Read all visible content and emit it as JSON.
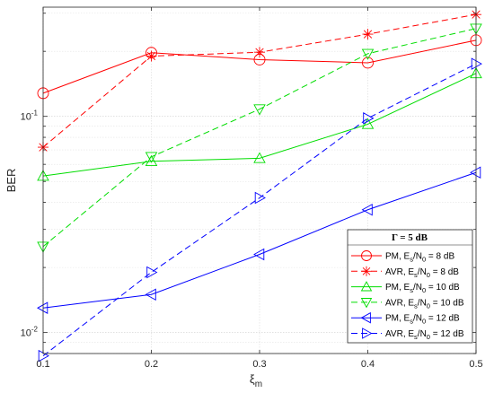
{
  "chart_data": {
    "type": "line",
    "title": "",
    "xlabel": "ξ",
    "xlabel_sub": "m",
    "ylabel": "BER",
    "xlim": [
      0.1,
      0.5
    ],
    "ylim": [
      0.008,
      0.32
    ],
    "yscale": "log",
    "grid": true,
    "x": [
      0.1,
      0.2,
      0.3,
      0.4,
      0.5
    ],
    "x_tick_labels": [
      "0.1",
      "0.2",
      "0.3",
      "0.4",
      "0.5"
    ],
    "y_tick_labels": [
      {
        "value": 0.01,
        "base": "10",
        "exp": "-2"
      },
      {
        "value": 0.1,
        "base": "10",
        "exp": "-1"
      }
    ],
    "legend": {
      "title": "Γ = 5 dB",
      "placement": "bottom-right"
    },
    "series": [
      {
        "label_pre": "PM, E",
        "label_sub": "s",
        "label_mid": "/N",
        "label_sub2": "0",
        "label_post": " = 8 dB",
        "color": "#ff0000",
        "dash": "solid",
        "marker": "circle",
        "values": [
          0.128,
          0.197,
          0.183,
          0.177,
          0.225
        ]
      },
      {
        "label_pre": "AVR, E",
        "label_sub": "s",
        "label_mid": "/N",
        "label_sub2": "0",
        "label_post": " = 8 dB",
        "color": "#ff0000",
        "dash": "dashed",
        "marker": "star",
        "values": [
          0.072,
          0.19,
          0.198,
          0.24,
          0.296
        ]
      },
      {
        "label_pre": "PM, E",
        "label_sub": "s",
        "label_mid": "/N",
        "label_sub2": "0",
        "label_post": " = 10 dB",
        "color": "#00dd00",
        "dash": "solid",
        "marker": "triangle-up",
        "values": [
          0.053,
          0.062,
          0.064,
          0.092,
          0.158
        ]
      },
      {
        "label_pre": "AVR, E",
        "label_sub": "s",
        "label_mid": "/N",
        "label_sub2": "0",
        "label_post": " = 10 dB",
        "color": "#00dd00",
        "dash": "dashed",
        "marker": "triangle-down",
        "values": [
          0.025,
          0.065,
          0.108,
          0.195,
          0.255
        ]
      },
      {
        "label_pre": "PM, E",
        "label_sub": "s",
        "label_mid": "/N",
        "label_sub2": "0",
        "label_post": " = 12 dB",
        "color": "#0000ff",
        "dash": "solid",
        "marker": "triangle-left",
        "values": [
          0.013,
          0.015,
          0.023,
          0.037,
          0.055
        ]
      },
      {
        "label_pre": "AVR, E",
        "label_sub": "s",
        "label_mid": "/N",
        "label_sub2": "0",
        "label_post": " = 12 dB",
        "color": "#0000ff",
        "dash": "dashed",
        "marker": "triangle-right",
        "values": [
          0.0078,
          0.019,
          0.042,
          0.098,
          0.175
        ]
      }
    ]
  }
}
